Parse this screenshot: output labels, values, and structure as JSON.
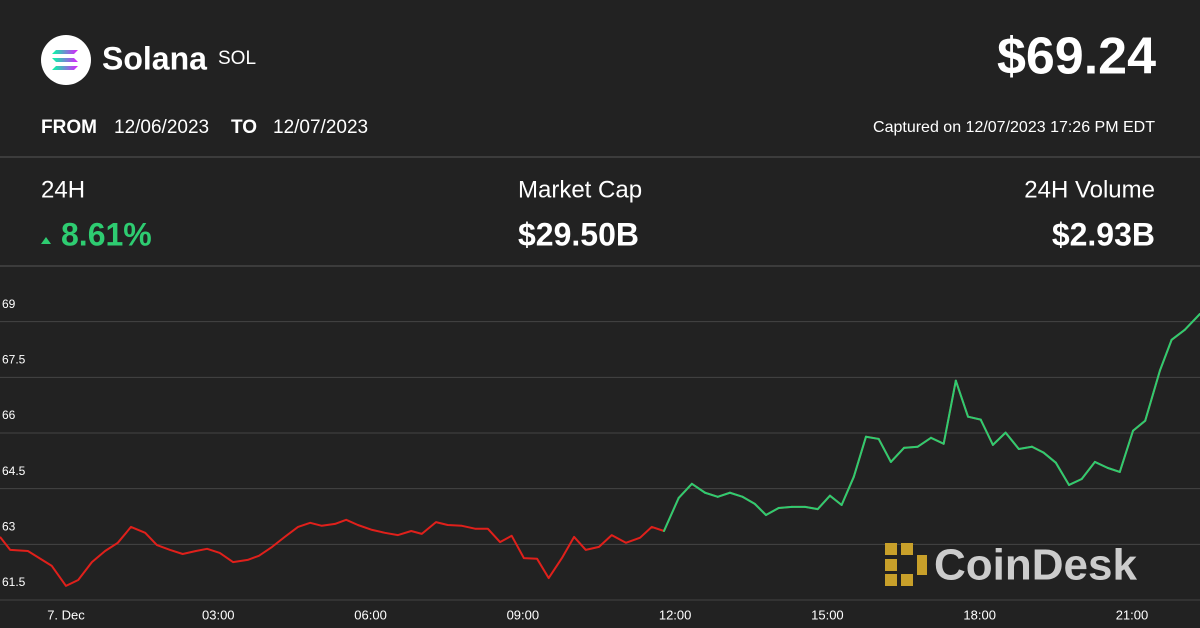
{
  "header": {
    "name": "Solana",
    "symbol": "SOL",
    "price": {
      "value": 69.24,
      "label": "$69.24"
    },
    "from_label": "FROM",
    "from_date": "12/06/2023",
    "to_label": "TO",
    "to_date": "12/07/2023",
    "captured": "Captured on 12/07/2023 17:26 PM EDT"
  },
  "stats": {
    "change_label": "24H",
    "change_24h": {
      "value": 8.61,
      "label": "8.61%"
    },
    "market_cap_label": "Market Cap",
    "market_cap": "$29.50B",
    "volume_label": "24H Volume",
    "volume": "$2.93B"
  },
  "watermark": "CoinDesk",
  "chart_data": {
    "type": "line",
    "x": [
      -1.3,
      -1.1,
      -0.75,
      -0.28,
      0,
      0.24,
      0.51,
      0.77,
      1.02,
      1.28,
      1.56,
      1.79,
      2.05,
      2.3,
      2.56,
      2.78,
      3.03,
      3.29,
      3.58,
      3.8,
      4.06,
      4.31,
      4.57,
      4.81,
      5.04,
      5.3,
      5.52,
      5.75,
      6.03,
      6.28,
      6.54,
      6.8,
      7.01,
      7.29,
      7.52,
      7.8,
      8.06,
      8.31,
      8.55,
      8.78,
      9.02,
      9.28,
      9.51,
      9.77,
      10.01,
      10.24,
      10.5,
      10.75,
      11.03,
      11.31,
      11.54,
      11.78,
      12.07,
      12.33,
      12.59,
      12.84,
      13.08,
      13.33,
      13.57,
      13.79,
      14.04,
      14.3,
      14.56,
      14.81,
      15.05,
      15.28,
      15.52,
      15.76,
      16.01,
      16.25,
      16.51,
      16.78,
      17.04,
      17.29,
      17.53,
      17.77,
      18.02,
      18.26,
      18.51,
      18.77,
      19.03,
      19.26,
      19.5,
      19.76,
      20.01,
      20.27,
      20.52,
      20.76,
      21.02,
      21.26,
      21.55,
      21.78,
      22.04,
      22.34
    ],
    "values": [
      63.2,
      62.85,
      62.82,
      62.42,
      61.88,
      62.04,
      62.52,
      62.82,
      63.04,
      63.47,
      63.31,
      62.98,
      62.85,
      62.74,
      62.82,
      62.88,
      62.77,
      62.52,
      62.58,
      62.69,
      62.93,
      63.2,
      63.47,
      63.58,
      63.5,
      63.55,
      63.66,
      63.52,
      63.39,
      63.31,
      63.25,
      63.36,
      63.28,
      63.6,
      63.52,
      63.5,
      63.42,
      63.42,
      63.06,
      63.23,
      62.63,
      62.61,
      62.09,
      62.63,
      63.2,
      62.85,
      62.93,
      63.25,
      63.04,
      63.18,
      63.47,
      63.36,
      64.25,
      64.63,
      64.39,
      64.28,
      64.39,
      64.28,
      64.09,
      63.79,
      63.98,
      64.01,
      64.01,
      63.95,
      64.31,
      64.06,
      64.82,
      65.9,
      65.84,
      65.22,
      65.6,
      65.63,
      65.87,
      65.71,
      67.41,
      66.44,
      66.36,
      65.68,
      66.01,
      65.57,
      65.63,
      65.47,
      65.2,
      64.6,
      64.76,
      65.22,
      65.06,
      64.95,
      66.06,
      66.33,
      67.68,
      68.51,
      68.78,
      69.21
    ],
    "up_color": "#2ecc71",
    "down_color": "#e0201b",
    "xlim": [
      -1.3,
      22.34
    ],
    "xticks": [
      {
        "value": 0,
        "label": "7. Dec"
      },
      {
        "value": 3,
        "label": "03:00"
      },
      {
        "value": 6,
        "label": "06:00"
      },
      {
        "value": 9,
        "label": "09:00"
      },
      {
        "value": 12,
        "label": "12:00"
      },
      {
        "value": 15,
        "label": "15:00"
      },
      {
        "value": 18,
        "label": "18:00"
      },
      {
        "value": 21,
        "label": "21:00"
      }
    ],
    "ylim": [
      61.5,
      70.5
    ],
    "yticks": [
      61.5,
      63,
      64.5,
      66,
      67.5,
      69
    ],
    "grid": true
  }
}
